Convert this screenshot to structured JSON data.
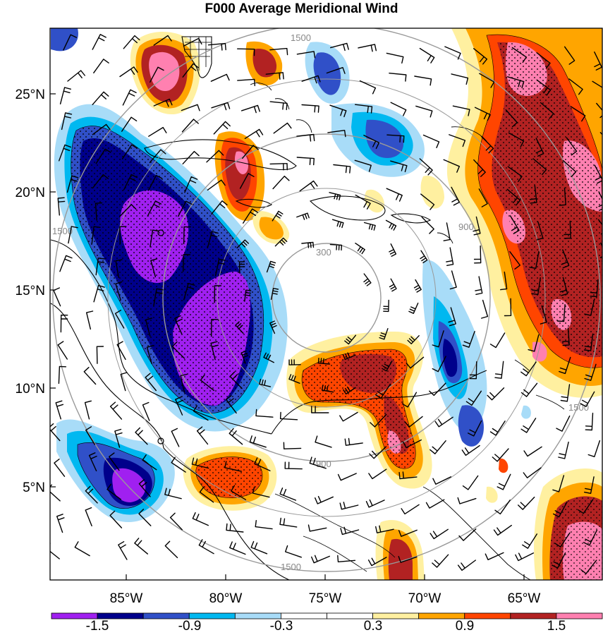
{
  "title": "F000 Average Meridional Wind",
  "lat_labels": [
    "25°N",
    "20°N",
    "15°N",
    "10°N",
    "5°N"
  ],
  "lon_labels": [
    "85°W",
    "80°W",
    "75°W",
    "70°W",
    "65°W"
  ],
  "range_ring_labels": [
    "300",
    "900",
    "1500"
  ],
  "colorbar": {
    "labels": [
      "-1.5",
      "-0.9",
      "-0.3",
      "0.3",
      "0.9",
      "1.5"
    ],
    "colors": [
      "#a020f0",
      "#00008b",
      "#3050c8",
      "#00b8f0",
      "#a8dcf8",
      "#ffffff",
      "#ffffff",
      "#fff0a0",
      "#ffa500",
      "#ff4500",
      "#b22222",
      "#ff80b0"
    ]
  },
  "palette": {
    "neg_strong": "#a020f0",
    "neg_dark": "#00008b",
    "neg_mid": "#3050c8",
    "neg_light": "#00b8f0",
    "neg_pale": "#a8dcf8",
    "pos_pale": "#fff0a0",
    "pos_light": "#ffa500",
    "pos_mid": "#ff4500",
    "pos_dark": "#b22222",
    "pos_strong": "#ff80b0"
  }
}
